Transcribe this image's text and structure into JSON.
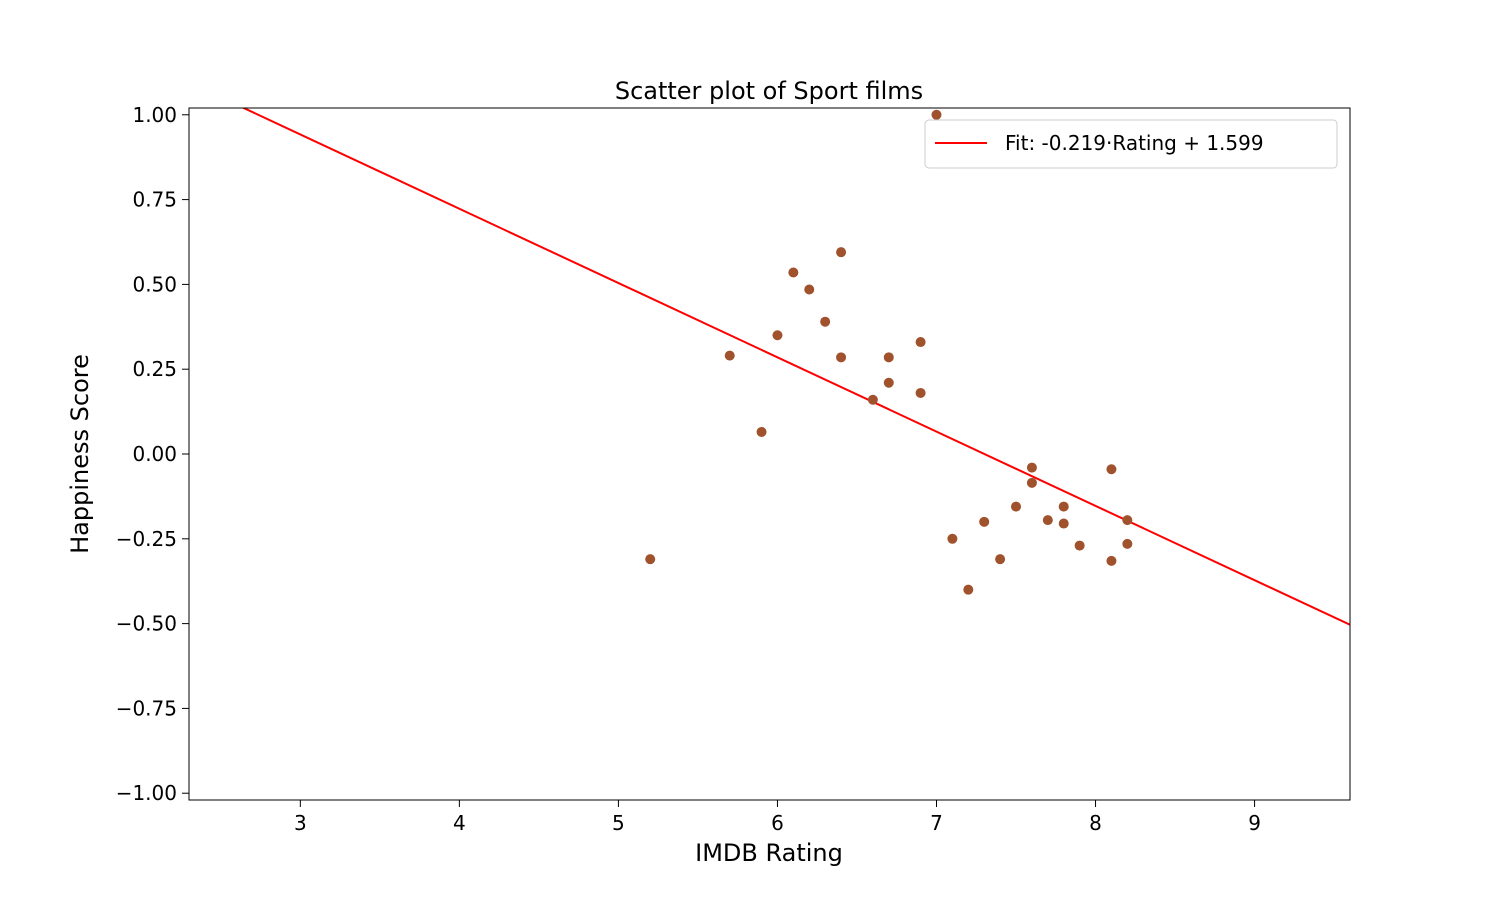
{
  "chart_data": {
    "type": "scatter",
    "title": "Scatter plot of Sport films",
    "xlabel": "IMDB Rating",
    "ylabel": "Happiness Score",
    "xlim": [
      2.3,
      9.6
    ],
    "ylim": [
      -1.02,
      1.02
    ],
    "xticks": [
      3,
      4,
      5,
      6,
      7,
      8,
      9
    ],
    "yticks": [
      {
        "value": 1.0,
        "label": "1.00"
      },
      {
        "value": 0.75,
        "label": "0.75"
      },
      {
        "value": 0.5,
        "label": "0.50"
      },
      {
        "value": 0.25,
        "label": "0.25"
      },
      {
        "value": 0.0,
        "label": "0.00"
      },
      {
        "value": -0.25,
        "label": "−0.25"
      },
      {
        "value": -0.5,
        "label": "−0.50"
      },
      {
        "value": -0.75,
        "label": "−0.75"
      },
      {
        "value": -1.0,
        "label": "−1.00"
      }
    ],
    "grid": false,
    "legend_position": "top-right",
    "point_color": "#a0522d",
    "fit_color": "#ff0000",
    "fit": {
      "slope": -0.219,
      "intercept": 1.599,
      "label": "Fit: -0.219·Rating + 1.599"
    },
    "points": [
      {
        "x": 5.2,
        "y": -0.31
      },
      {
        "x": 5.7,
        "y": 0.29
      },
      {
        "x": 5.9,
        "y": 0.065
      },
      {
        "x": 6.0,
        "y": 0.35
      },
      {
        "x": 6.1,
        "y": 0.535
      },
      {
        "x": 6.2,
        "y": 0.485
      },
      {
        "x": 6.3,
        "y": 0.39
      },
      {
        "x": 6.4,
        "y": 0.595
      },
      {
        "x": 6.4,
        "y": 0.285
      },
      {
        "x": 6.6,
        "y": 0.16
      },
      {
        "x": 6.7,
        "y": 0.285
      },
      {
        "x": 6.7,
        "y": 0.21
      },
      {
        "x": 6.9,
        "y": 0.33
      },
      {
        "x": 6.9,
        "y": 0.18
      },
      {
        "x": 7.0,
        "y": 1.0
      },
      {
        "x": 7.1,
        "y": -0.25
      },
      {
        "x": 7.2,
        "y": -0.4
      },
      {
        "x": 7.3,
        "y": -0.2
      },
      {
        "x": 7.4,
        "y": -0.31
      },
      {
        "x": 7.5,
        "y": -0.155
      },
      {
        "x": 7.6,
        "y": -0.04
      },
      {
        "x": 7.6,
        "y": -0.085
      },
      {
        "x": 7.7,
        "y": -0.195
      },
      {
        "x": 7.8,
        "y": -0.155
      },
      {
        "x": 7.8,
        "y": -0.205
      },
      {
        "x": 7.9,
        "y": -0.27
      },
      {
        "x": 8.1,
        "y": -0.045
      },
      {
        "x": 8.1,
        "y": -0.315
      },
      {
        "x": 8.2,
        "y": -0.195
      },
      {
        "x": 8.2,
        "y": -0.265
      }
    ]
  }
}
